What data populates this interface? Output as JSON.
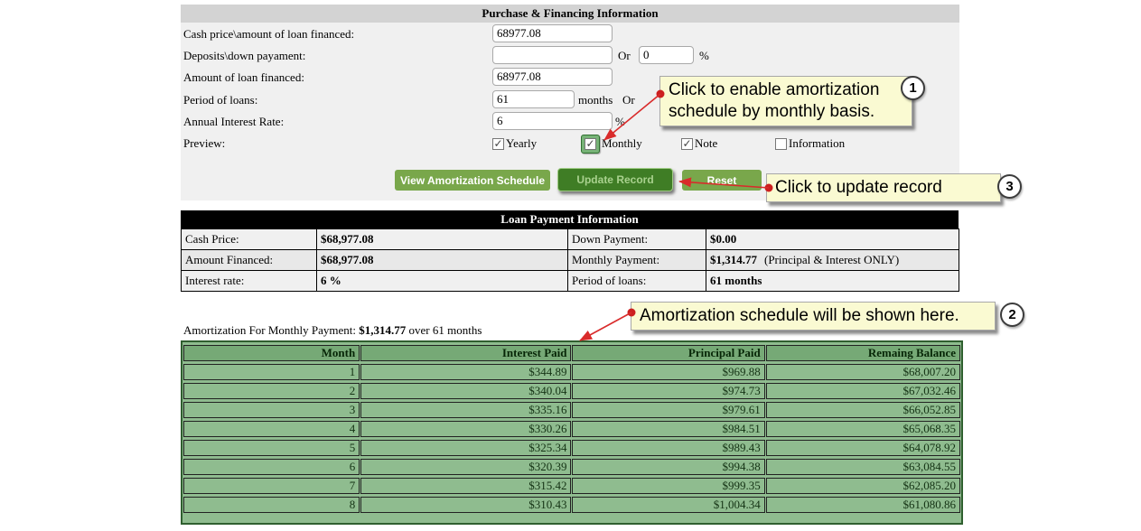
{
  "page": {
    "title": "Purchase & Financing Information"
  },
  "form": {
    "cash_price": {
      "label": "Cash price\\amount of loan financed:",
      "value": "68977.08"
    },
    "deposits": {
      "label": "Deposits\\down payament:",
      "value": "",
      "or": "Or",
      "percent_value": "0",
      "percent_sign": "%"
    },
    "amount_financed": {
      "label": "Amount of loan financed:",
      "value": "68977.08"
    },
    "period": {
      "label": "Period of loans:",
      "value": "61",
      "unit": "months",
      "or": "Or"
    },
    "interest": {
      "label": "Annual Interest Rate:",
      "value": "6",
      "unit": "%"
    },
    "preview_label": "Preview:",
    "preview_options": [
      {
        "label": "Yearly",
        "checked": true,
        "highlighted": false
      },
      {
        "label": "Monthly",
        "checked": true,
        "highlighted": true
      },
      {
        "label": "Note",
        "checked": true,
        "highlighted": false
      },
      {
        "label": "Information",
        "checked": false,
        "highlighted": false
      }
    ]
  },
  "buttons": {
    "view_schedule": "View Amortization Schedule",
    "update_record": "Update Record",
    "reset": "Reset"
  },
  "callouts": {
    "c1": {
      "number": "1",
      "text": "Click to enable amortization schedule by monthly basis."
    },
    "c2": {
      "number": "2",
      "text": "Amortization schedule will be shown here."
    },
    "c3": {
      "number": "3",
      "text": "Click to update record"
    }
  },
  "loan_info": {
    "title": "Loan Payment Information",
    "rows": [
      {
        "l1": "Cash Price:",
        "v1": "$68,977.08",
        "l2": "Down Payment:",
        "v2": "$0.00",
        "note": ""
      },
      {
        "l1": "Amount Financed:",
        "v1": "$68,977.08",
        "l2": "Monthly Payment:",
        "v2": "$1,314.77",
        "note": "(Principal & Interest ONLY)"
      },
      {
        "l1": "Interest rate:",
        "v1": "6 %",
        "l2": "Period of loans:",
        "v2": "61 months",
        "note": ""
      }
    ]
  },
  "amortization": {
    "caption": {
      "prefix": "Amortization For Monthly Payment: ",
      "amount": "$1,314.77",
      "suffix": " over 61 months"
    },
    "columns": [
      "Month",
      "Interest Paid",
      "Principal Paid",
      "Remaing Balance"
    ],
    "rows": [
      [
        "1",
        "$344.89",
        "$969.88",
        "$68,007.20"
      ],
      [
        "2",
        "$340.04",
        "$974.73",
        "$67,032.46"
      ],
      [
        "3",
        "$335.16",
        "$979.61",
        "$66,052.85"
      ],
      [
        "4",
        "$330.26",
        "$984.51",
        "$65,068.35"
      ],
      [
        "5",
        "$325.34",
        "$989.43",
        "$64,078.92"
      ],
      [
        "6",
        "$320.39",
        "$994.38",
        "$63,084.55"
      ],
      [
        "7",
        "$315.42",
        "$999.35",
        "$62,085.20"
      ],
      [
        "8",
        "$310.43",
        "$1,004.34",
        "$61,080.86"
      ]
    ]
  },
  "colors": {
    "button_green": "#79a74b",
    "button_dark_green": "#3f7d25",
    "callout_yellow": "#fafad2",
    "table_green": "#8fbc8f",
    "arrow_red": "#d92b2b",
    "header_gray": "#d3d3d3"
  }
}
